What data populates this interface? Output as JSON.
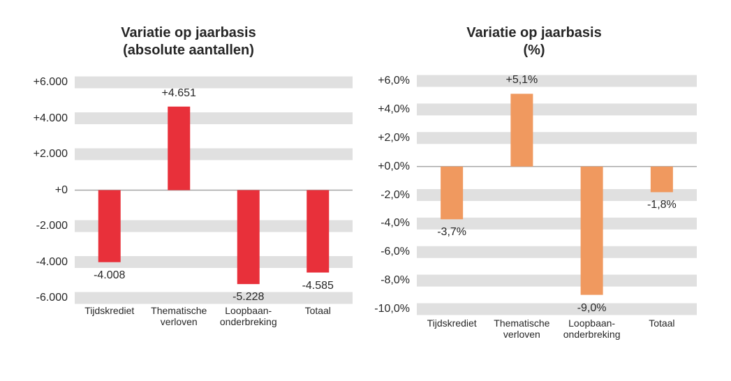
{
  "chart_data": [
    {
      "type": "bar",
      "title": "Variatie op jaarbasis\n(absolute aantallen)",
      "categories": [
        "Tijdskrediet",
        "Thematische\nverloven",
        "Loopbaan-\nonderbreking",
        "Totaal"
      ],
      "values": [
        -4008,
        4651,
        -5228,
        -4585
      ],
      "value_labels": [
        "-4.008",
        "+4.651",
        "-5.228",
        "-4.585"
      ],
      "color": "#e8303a",
      "ylim": [
        -6000,
        6000
      ],
      "yticks": [
        {
          "value": -6000,
          "label": "-6.000"
        },
        {
          "value": -4000,
          "label": "-4.000"
        },
        {
          "value": -2000,
          "label": "-2.000"
        },
        {
          "value": 0,
          "label": "+0"
        },
        {
          "value": 2000,
          "label": "+2.000"
        },
        {
          "value": 4000,
          "label": "+4.000"
        },
        {
          "value": 6000,
          "label": "+6.000"
        }
      ],
      "grid": "bands"
    },
    {
      "type": "bar",
      "title": "Variatie op jaarbasis\n(%)",
      "categories": [
        "Tijdskrediet",
        "Thematische\nverloven",
        "Loopbaan-\nonderbreking",
        "Totaal"
      ],
      "values": [
        -3.7,
        5.1,
        -9.0,
        -1.8
      ],
      "value_labels": [
        "-3,7%",
        "+5,1%",
        "-9,0%",
        "-1,8%"
      ],
      "color": "#f0995f",
      "ylim": [
        -10,
        6
      ],
      "yticks": [
        {
          "value": -10,
          "label": "-10,0%"
        },
        {
          "value": -8,
          "label": "-8,0%"
        },
        {
          "value": -6,
          "label": "-6,0%"
        },
        {
          "value": -4,
          "label": "-4,0%"
        },
        {
          "value": -2,
          "label": "-2,0%"
        },
        {
          "value": 0,
          "label": "+0,0%"
        },
        {
          "value": 2,
          "label": "+2,0%"
        },
        {
          "value": 4,
          "label": "+4,0%"
        },
        {
          "value": 6,
          "label": "+6,0%"
        }
      ],
      "grid": "bands"
    }
  ]
}
